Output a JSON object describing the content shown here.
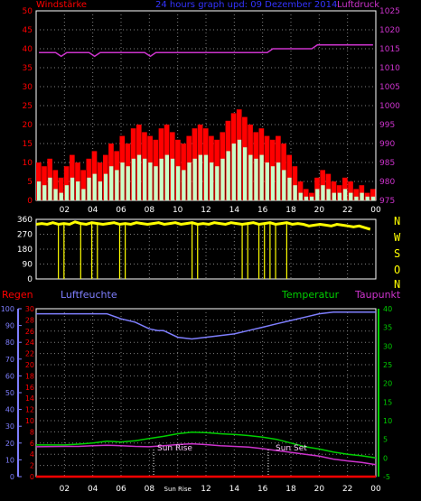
{
  "wind_panel": {
    "header_left": "Windstärke",
    "header_center": "24 hours graph upd: 09 Dezember 2014",
    "header_right": "Luftdruck"
  },
  "direction_panel": {
    "compass": [
      "N",
      "W",
      "S",
      "O",
      "N"
    ]
  },
  "weather_panel": {
    "header_regen": "Regen",
    "header_humidity": "Luftfeuchte",
    "header_temperature": "Temperatur",
    "header_dewpoint": "Taupunkt",
    "sun_rise_label": "Sun Rise",
    "sun_set_label": "Sun Set"
  },
  "colors": {
    "wind_gust": "#ff0000",
    "wind_avg": "#c8ffc8",
    "pressure": "#cc33cc",
    "direction": "#ffff00",
    "rain": "#ff0000",
    "humidity": "#7f7fff",
    "temperature": "#00d000",
    "dewpoint": "#cc33cc",
    "axis_box": "#ffffff",
    "left_axis_red": "#ff0000",
    "left_axis_blue": "#7f7fff",
    "right_axis_magenta": "#cc33cc",
    "right_axis_green": "#00d000"
  },
  "chart_data": [
    {
      "type": "area",
      "x_ticks": [
        "02",
        "04",
        "06",
        "08",
        "10",
        "12",
        "14",
        "16",
        "18",
        "20",
        "22",
        "00"
      ],
      "y_left": {
        "ticks": [
          "0",
          "5",
          "10",
          "15",
          "20",
          "25",
          "30",
          "35",
          "40",
          "45",
          "50"
        ],
        "lim": [
          0,
          50
        ]
      },
      "y_right": {
        "ticks": [
          "975",
          "980",
          "985",
          "990",
          "995",
          "1000",
          "1005",
          "1010",
          "1015",
          "1020",
          "1025"
        ],
        "lim": [
          975,
          1025
        ]
      },
      "series": [
        {
          "name": "Windstärke",
          "style": "bars",
          "axis": "left",
          "color": "red",
          "values": [
            10,
            9,
            11,
            8,
            6,
            9,
            12,
            10,
            8,
            11,
            13,
            10,
            12,
            15,
            13,
            17,
            15,
            19,
            20,
            18,
            17,
            16,
            19,
            20,
            18,
            16,
            15,
            17,
            19,
            20,
            19,
            17,
            16,
            18,
            21,
            23,
            24,
            22,
            20,
            18,
            19,
            17,
            16,
            17,
            15,
            12,
            9,
            5,
            3,
            2,
            6,
            8,
            7,
            5,
            4,
            6,
            5,
            3,
            4,
            2,
            3
          ]
        },
        {
          "name": "Wind Mittel",
          "style": "bars",
          "axis": "left",
          "color": "lightgreen",
          "values": [
            5,
            4,
            6,
            3,
            2,
            4,
            6,
            5,
            3,
            6,
            7,
            5,
            7,
            9,
            8,
            10,
            9,
            11,
            12,
            11,
            10,
            9,
            11,
            12,
            11,
            9,
            8,
            10,
            11,
            12,
            12,
            10,
            9,
            11,
            13,
            15,
            16,
            14,
            12,
            11,
            12,
            10,
            9,
            10,
            8,
            6,
            4,
            2,
            1,
            1,
            3,
            4,
            3,
            2,
            2,
            3,
            2,
            1,
            2,
            1,
            1
          ]
        },
        {
          "name": "Luftdruck",
          "style": "line",
          "axis": "right",
          "color": "magenta",
          "values": [
            1014,
            1014,
            1014,
            1014,
            1013,
            1014,
            1014,
            1014,
            1014,
            1014,
            1013,
            1014,
            1014,
            1014,
            1014,
            1014,
            1014,
            1014,
            1014,
            1014,
            1013,
            1014,
            1014,
            1014,
            1014,
            1014,
            1014,
            1014,
            1014,
            1014,
            1014,
            1014,
            1014,
            1014,
            1014,
            1014,
            1014,
            1014,
            1014,
            1014,
            1014,
            1014,
            1015,
            1015,
            1015,
            1015,
            1015,
            1015,
            1015,
            1015,
            1016,
            1016,
            1016,
            1016,
            1016,
            1016,
            1016,
            1016,
            1016,
            1016,
            1016
          ]
        }
      ]
    },
    {
      "type": "bar",
      "x_ticks": [
        "02",
        "04",
        "06",
        "08",
        "10",
        "12",
        "14",
        "16",
        "18",
        "20",
        "22",
        "00"
      ],
      "y": {
        "ticks": [
          "0",
          "90",
          "180",
          "270",
          "360"
        ],
        "lim": [
          0,
          360
        ]
      },
      "series": [
        {
          "name": "Windrichtung",
          "color": "yellow",
          "values": [
            330,
            335,
            330,
            340,
            330,
            335,
            330,
            345,
            335,
            330,
            340,
            335,
            330,
            335,
            340,
            330,
            335,
            330,
            340,
            335,
            330,
            335,
            340,
            330,
            335,
            340,
            330,
            335,
            340,
            330,
            335,
            330,
            340,
            335,
            330,
            340,
            335,
            330,
            335,
            340,
            330,
            335,
            340,
            330,
            335,
            340,
            330,
            335,
            330,
            320,
            325,
            330,
            325,
            320,
            330,
            325,
            320,
            315,
            320,
            310,
            300
          ],
          "dips": [
            4,
            5,
            8,
            10,
            11,
            15,
            16,
            28,
            29,
            37,
            38,
            40,
            41,
            42,
            43,
            45
          ]
        }
      ]
    },
    {
      "type": "line",
      "x_ticks": [
        "02",
        "04",
        "06",
        "08",
        "Sun Rise",
        "12",
        "14",
        "16",
        "18",
        "20",
        "22",
        "00"
      ],
      "y_left": {
        "ticks": [
          "0",
          "10",
          "20",
          "30",
          "40",
          "50",
          "60",
          "70",
          "80",
          "90",
          "100"
        ],
        "lim": [
          0,
          100
        ]
      },
      "y_left_inner": {
        "ticks": [
          "0",
          "2",
          "4",
          "6",
          "8",
          "10",
          "12",
          "14",
          "16",
          "18",
          "20",
          "22",
          "24",
          "26",
          "28",
          "30"
        ],
        "lim": [
          0,
          30
        ]
      },
      "y_right": {
        "ticks": [
          "-5",
          "0",
          "5",
          "10",
          "15",
          "20",
          "25",
          "30",
          "35",
          "40"
        ],
        "lim": [
          -5,
          40
        ]
      },
      "annotations": [
        {
          "label": "Sun Rise",
          "x": 8.3
        },
        {
          "label": "Sun Set",
          "x": 16.4
        }
      ],
      "series": [
        {
          "name": "Luftfeuchte",
          "axis": "left",
          "color": "blue",
          "x": [
            0,
            4,
            5,
            6,
            7,
            8,
            8.6,
            9,
            10,
            11,
            12,
            13,
            14,
            15,
            16,
            17,
            18,
            19,
            20,
            21,
            22,
            23,
            24
          ],
          "values": [
            97,
            97,
            97,
            94,
            92,
            88,
            87,
            87,
            83,
            82,
            83,
            84,
            85,
            87,
            89,
            91,
            93,
            95,
            97,
            98,
            98,
            98,
            98
          ]
        },
        {
          "name": "Temperatur",
          "axis": "right",
          "color": "green",
          "x": [
            0,
            2,
            3,
            4,
            5,
            6,
            7,
            8,
            9,
            10,
            11,
            12,
            13,
            14,
            15,
            16,
            17,
            18,
            19,
            20,
            21,
            22,
            23,
            24
          ],
          "values": [
            3.5,
            3.5,
            3.7,
            4.0,
            4.5,
            4.3,
            4.6,
            5.2,
            5.8,
            6.5,
            6.9,
            6.8,
            6.5,
            6.3,
            6.0,
            5.6,
            5.0,
            4.0,
            3.0,
            2.4,
            1.6,
            1.0,
            0.6,
            0.0
          ]
        },
        {
          "name": "Taupunkt",
          "axis": "right",
          "color": "magenta",
          "x": [
            0,
            2,
            3,
            4,
            5,
            6,
            7,
            8,
            9,
            10,
            11,
            12,
            13,
            14,
            15,
            16,
            17,
            18,
            19,
            20,
            21,
            22,
            23,
            24
          ],
          "values": [
            3.0,
            3.1,
            3.1,
            3.3,
            3.4,
            3.3,
            3.1,
            3.0,
            3.3,
            3.6,
            3.8,
            3.6,
            3.3,
            3.1,
            2.9,
            2.5,
            2.0,
            1.5,
            1.0,
            0.5,
            -0.3,
            -0.8,
            -1.2,
            -1.8
          ]
        },
        {
          "name": "Regen",
          "axis": "left",
          "color": "red",
          "x": [
            0,
            24
          ],
          "values": [
            0,
            0
          ]
        }
      ]
    }
  ]
}
